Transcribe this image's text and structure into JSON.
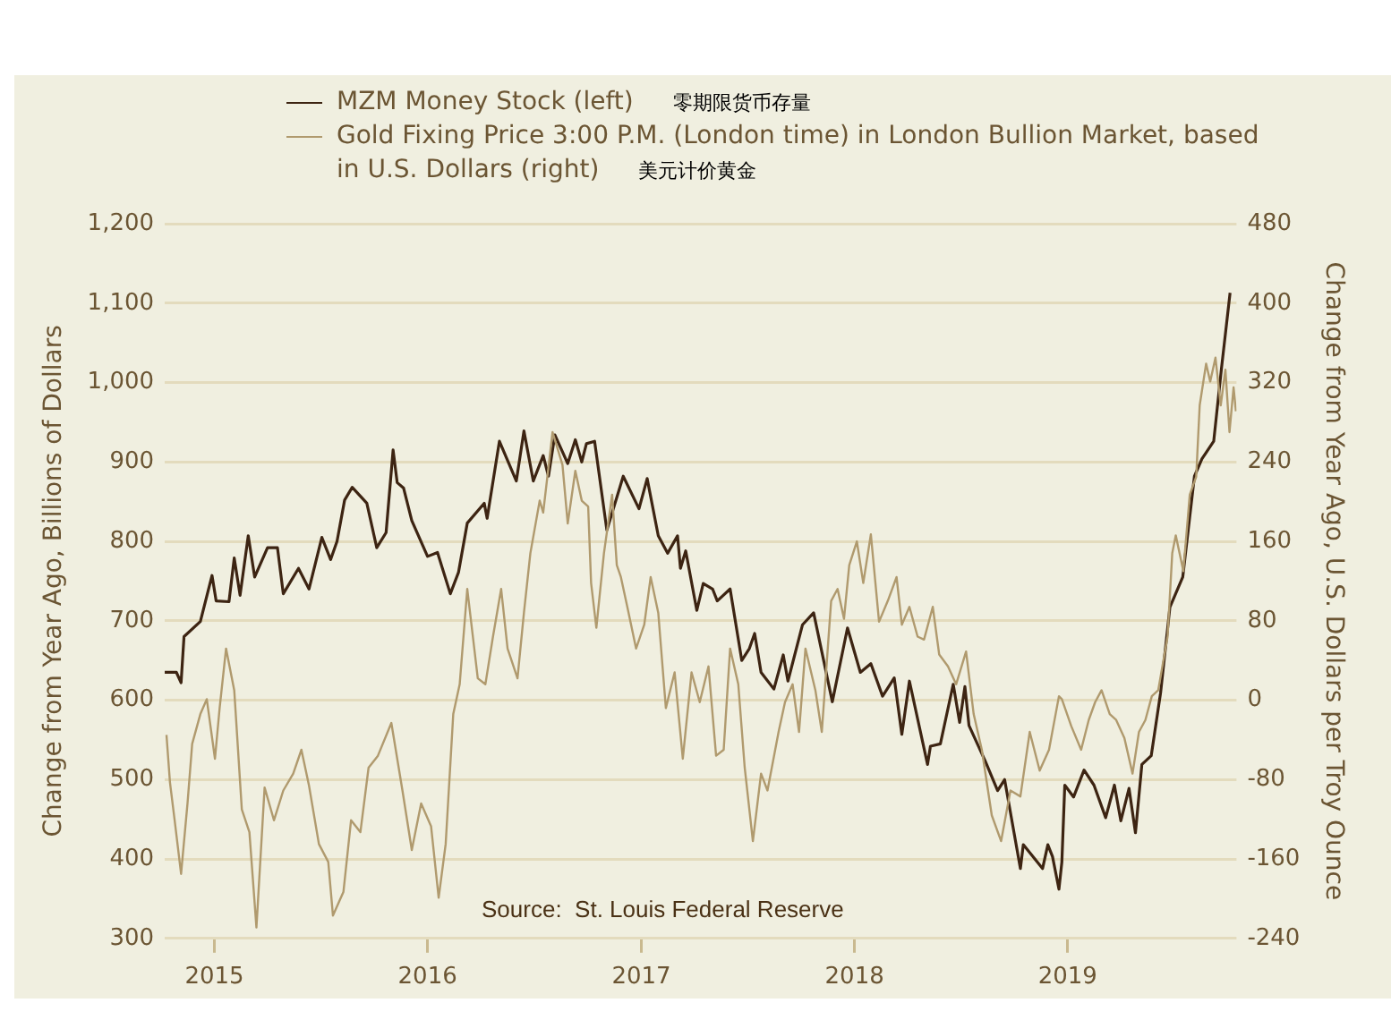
{
  "chart_data": {
    "type": "line",
    "xlabel": null,
    "ylabel": "Change from Year Ago, Billions of Dollars",
    "y2label": "Change from Year Ago, U.S. Dollars per Troy Ounce",
    "annotations": [
      "零期限货币存量",
      "美元计价黄金",
      "Source:  St. Louis Federal Reserve"
    ],
    "xlim": [
      "2014-10-08",
      "2019-10-17"
    ],
    "xticks": [
      "2015",
      "2016",
      "2017",
      "2018",
      "2019"
    ],
    "ylim": [
      300,
      1200
    ],
    "yticks": [
      {
        "value": 300,
        "label": "300"
      },
      {
        "value": 400,
        "label": "400"
      },
      {
        "value": 500,
        "label": "500"
      },
      {
        "value": 600,
        "label": "600"
      },
      {
        "value": 700,
        "label": "700"
      },
      {
        "value": 800,
        "label": "800"
      },
      {
        "value": 900,
        "label": "900"
      },
      {
        "value": 1000,
        "label": "1,000"
      },
      {
        "value": 1100,
        "label": "1,100"
      },
      {
        "value": 1200,
        "label": "1,200"
      }
    ],
    "y2lim": [
      -240,
      480
    ],
    "y2ticks": [
      -240,
      -160,
      -80,
      0,
      80,
      160,
      240,
      320,
      400,
      480
    ],
    "grid": "y",
    "legend": "top",
    "line_style": "solid",
    "series": [
      {
        "name": "MZM Money Stock (left)",
        "color": "#3d2412",
        "axis": "y",
        "x": [
          "2014-10-08",
          "2014-10-28",
          "2014-11-05",
          "2014-11-10",
          "2014-12-08",
          "2014-12-28",
          "2015-01-04",
          "2015-01-26",
          "2015-02-04",
          "2015-02-14",
          "2015-02-28",
          "2015-03-11",
          "2015-04-02",
          "2015-04-19",
          "2015-04-29",
          "2015-05-25",
          "2015-06-12",
          "2015-07-04",
          "2015-07-19",
          "2015-07-30",
          "2015-08-12",
          "2015-08-25",
          "2015-09-19",
          "2015-10-06",
          "2015-10-22",
          "2015-11-03",
          "2015-11-10",
          "2015-11-21",
          "2015-12-05",
          "2016-01-01",
          "2016-01-18",
          "2016-02-09",
          "2016-02-23",
          "2016-03-09",
          "2016-04-07",
          "2016-04-12",
          "2016-05-03",
          "2016-06-01",
          "2016-06-14",
          "2016-06-30",
          "2016-07-17",
          "2016-07-26",
          "2016-08-06",
          "2016-08-28",
          "2016-09-10",
          "2016-09-21",
          "2016-09-29",
          "2016-10-13",
          "2016-11-03",
          "2016-12-01",
          "2016-12-28",
          "2017-01-11",
          "2017-01-30",
          "2017-02-15",
          "2017-03-04",
          "2017-03-09",
          "2017-03-18",
          "2017-04-06",
          "2017-04-17",
          "2017-05-03",
          "2017-05-11",
          "2017-06-02",
          "2017-06-22",
          "2017-07-05",
          "2017-07-14",
          "2017-07-25",
          "2017-08-16",
          "2017-09-01",
          "2017-09-09",
          "2017-10-04",
          "2017-10-23",
          "2017-11-24",
          "2017-12-20",
          "2018-01-11",
          "2018-01-29",
          "2018-02-18",
          "2018-03-10",
          "2018-03-23",
          "2018-04-05",
          "2018-05-06",
          "2018-05-11",
          "2018-05-28",
          "2018-06-19",
          "2018-06-30",
          "2018-07-09",
          "2018-07-16",
          "2018-08-13",
          "2018-09-03",
          "2018-09-15",
          "2018-10-12",
          "2018-10-17",
          "2018-11-19",
          "2018-11-28",
          "2018-12-06",
          "2018-12-17",
          "2018-12-22",
          "2018-12-27",
          "2019-01-11",
          "2019-01-29",
          "2019-02-15",
          "2019-03-07",
          "2019-03-22",
          "2019-04-02",
          "2019-04-16",
          "2019-04-27",
          "2019-05-08",
          "2019-05-24",
          "2019-06-09",
          "2019-06-25",
          "2019-07-17",
          "2019-08-06",
          "2019-08-19",
          "2019-09-08",
          "2019-09-21",
          "2019-10-06"
        ],
        "values": [
          635,
          635,
          622,
          680,
          699,
          757,
          725,
          724,
          779,
          732,
          807,
          755,
          792,
          792,
          734,
          766,
          740,
          805,
          777,
          800,
          852,
          868,
          848,
          792,
          811,
          915,
          874,
          867,
          826,
          781,
          786,
          734,
          761,
          823,
          848,
          829,
          926,
          876,
          939,
          876,
          908,
          882,
          934,
          898,
          928,
          900,
          923,
          926,
          814,
          882,
          841,
          879,
          807,
          785,
          807,
          766,
          788,
          713,
          747,
          740,
          725,
          740,
          650,
          665,
          684,
          635,
          614,
          657,
          624,
          695,
          710,
          598,
          691,
          635,
          646,
          605,
          628,
          557,
          624,
          519,
          542,
          545,
          620,
          572,
          617,
          568,
          523,
          486,
          500,
          388,
          418,
          388,
          418,
          403,
          362,
          396,
          493,
          478,
          512,
          493,
          452,
          493,
          448,
          489,
          433,
          519,
          530,
          609,
          717,
          755,
          882,
          904,
          926,
          1016,
          1113
        ]
      },
      {
        "name": "Gold Fixing Price 3:00 P.M. (London time) in London Bullion Market, based in U.S. Dollars (right)",
        "color": "#b09a6e",
        "axis": "y2",
        "x": [
          "2014-10-11",
          "2014-10-17",
          "2014-10-25",
          "2014-11-05",
          "2014-11-16",
          "2014-11-24",
          "2014-12-08",
          "2014-12-19",
          "2015-01-02",
          "2015-01-10",
          "2015-01-21",
          "2015-02-04",
          "2015-02-17",
          "2015-03-02",
          "2015-03-14",
          "2015-03-28",
          "2015-04-13",
          "2015-04-29",
          "2015-05-16",
          "2015-05-30",
          "2015-06-12",
          "2015-06-29",
          "2015-07-15",
          "2015-07-23",
          "2015-08-10",
          "2015-08-23",
          "2015-09-08",
          "2015-09-22",
          "2015-10-08",
          "2015-10-31",
          "2015-11-19",
          "2015-12-05",
          "2015-12-21",
          "2016-01-07",
          "2016-01-20",
          "2016-02-01",
          "2016-02-14",
          "2016-02-25",
          "2016-03-09",
          "2016-03-27",
          "2016-04-09",
          "2016-04-22",
          "2016-05-06",
          "2016-05-17",
          "2016-06-03",
          "2016-06-14",
          "2016-06-25",
          "2016-07-11",
          "2016-07-17",
          "2016-08-02",
          "2016-08-19",
          "2016-08-28",
          "2016-09-10",
          "2016-09-21",
          "2016-10-02",
          "2016-10-07",
          "2016-10-16",
          "2016-10-29",
          "2016-11-12",
          "2016-11-20",
          "2016-11-27",
          "2016-12-08",
          "2016-12-23",
          "2017-01-06",
          "2017-01-17",
          "2017-01-30",
          "2017-02-12",
          "2017-02-27",
          "2017-03-13",
          "2017-03-28",
          "2017-04-11",
          "2017-04-26",
          "2017-05-09",
          "2017-05-22",
          "2017-06-02",
          "2017-06-16",
          "2017-06-27",
          "2017-07-11",
          "2017-07-25",
          "2017-08-05",
          "2017-08-24",
          "2017-09-04",
          "2017-09-17",
          "2017-09-28",
          "2017-10-09",
          "2017-10-26",
          "2017-11-06",
          "2017-11-22",
          "2017-12-03",
          "2017-12-14",
          "2017-12-23",
          "2018-01-05",
          "2018-01-16",
          "2018-01-29",
          "2018-02-12",
          "2018-02-27",
          "2018-03-14",
          "2018-03-23",
          "2018-04-05",
          "2018-04-19",
          "2018-04-30",
          "2018-05-15",
          "2018-05-26",
          "2018-06-10",
          "2018-06-24",
          "2018-07-11",
          "2018-07-24",
          "2018-08-07",
          "2018-08-24",
          "2018-09-09",
          "2018-09-25",
          "2018-10-12",
          "2018-10-28",
          "2018-11-14",
          "2018-11-30",
          "2018-12-17",
          "2018-12-22",
          "2019-01-07",
          "2019-01-24",
          "2019-02-06",
          "2019-02-17",
          "2019-02-28",
          "2019-03-14",
          "2019-03-25",
          "2019-04-08",
          "2019-04-22",
          "2019-05-03",
          "2019-05-14",
          "2019-05-25",
          "2019-06-05",
          "2019-06-21",
          "2019-06-29",
          "2019-07-05",
          "2019-07-18",
          "2019-07-29",
          "2019-08-09",
          "2019-08-15",
          "2019-08-26",
          "2019-09-02",
          "2019-09-11",
          "2019-09-20",
          "2019-09-28",
          "2019-10-05",
          "2019-10-12",
          "2019-10-16"
        ],
        "values": [
          -35,
          -83,
          -121,
          -175,
          -104,
          -44,
          -14,
          1,
          -59,
          -8,
          52,
          10,
          -110,
          -133,
          -229,
          -88,
          -121,
          -91,
          -74,
          -50,
          -86,
          -145,
          -163,
          -217,
          -193,
          -121,
          -133,
          -68,
          -56,
          -23,
          -91,
          -151,
          -104,
          -127,
          -199,
          -145,
          -14,
          16,
          112,
          22,
          16,
          64,
          112,
          52,
          22,
          88,
          148,
          201,
          189,
          270,
          237,
          178,
          231,
          201,
          195,
          118,
          73,
          148,
          207,
          136,
          124,
          94,
          52,
          76,
          124,
          88,
          -8,
          28,
          -59,
          28,
          -2,
          34,
          -56,
          -50,
          52,
          16,
          -68,
          -142,
          -74,
          -91,
          -32,
          -2,
          16,
          -32,
          52,
          10,
          -32,
          100,
          112,
          82,
          136,
          160,
          118,
          167,
          79,
          100,
          124,
          76,
          94,
          64,
          61,
          94,
          46,
          34,
          16,
          49,
          -14,
          -50,
          -116,
          -142,
          -91,
          -97,
          -32,
          -71,
          -50,
          4,
          1,
          -26,
          -50,
          -20,
          -2,
          10,
          -14,
          -20,
          -38,
          -74,
          -32,
          -20,
          4,
          10,
          64,
          148,
          166,
          130,
          207,
          225,
          297,
          339,
          321,
          345,
          297,
          333,
          270,
          315,
          291
        ]
      }
    ]
  }
}
